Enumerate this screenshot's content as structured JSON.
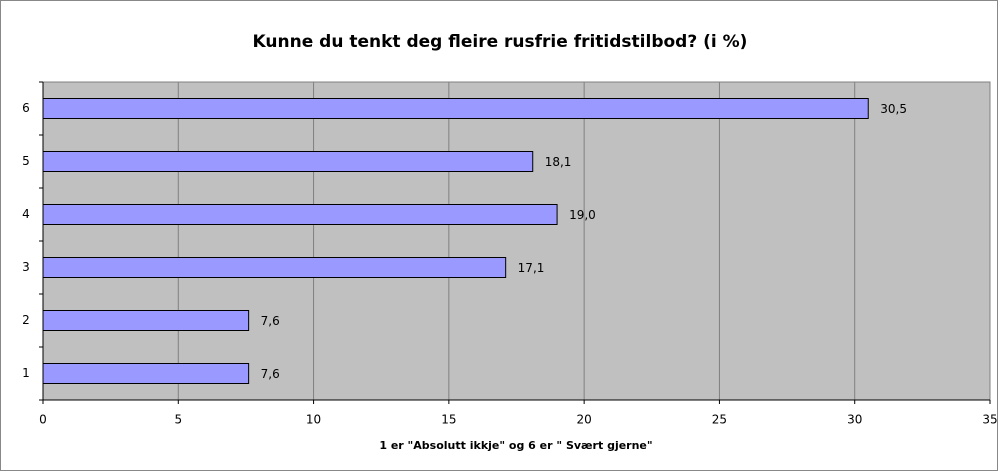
{
  "chart_data": {
    "type": "bar",
    "orientation": "horizontal",
    "title": "Kunne du tenkt deg fleire rusfrie fritidstilbod? (i %)",
    "x_label": "1 er \"Absolutt ikkje\" og 6 er \" Svært gjerne\"",
    "categories": [
      "1",
      "2",
      "3",
      "4",
      "5",
      "6"
    ],
    "values": [
      7.6,
      7.6,
      17.1,
      19.0,
      18.1,
      30.5
    ],
    "value_labels": [
      "7,6",
      "7,6",
      "17,1",
      "19,0",
      "18,1",
      "30,5"
    ],
    "color": "#9999ff",
    "xlim": [
      0,
      35
    ],
    "xticks": [
      0,
      5,
      10,
      15,
      20,
      25,
      30,
      35
    ],
    "grid": true
  }
}
